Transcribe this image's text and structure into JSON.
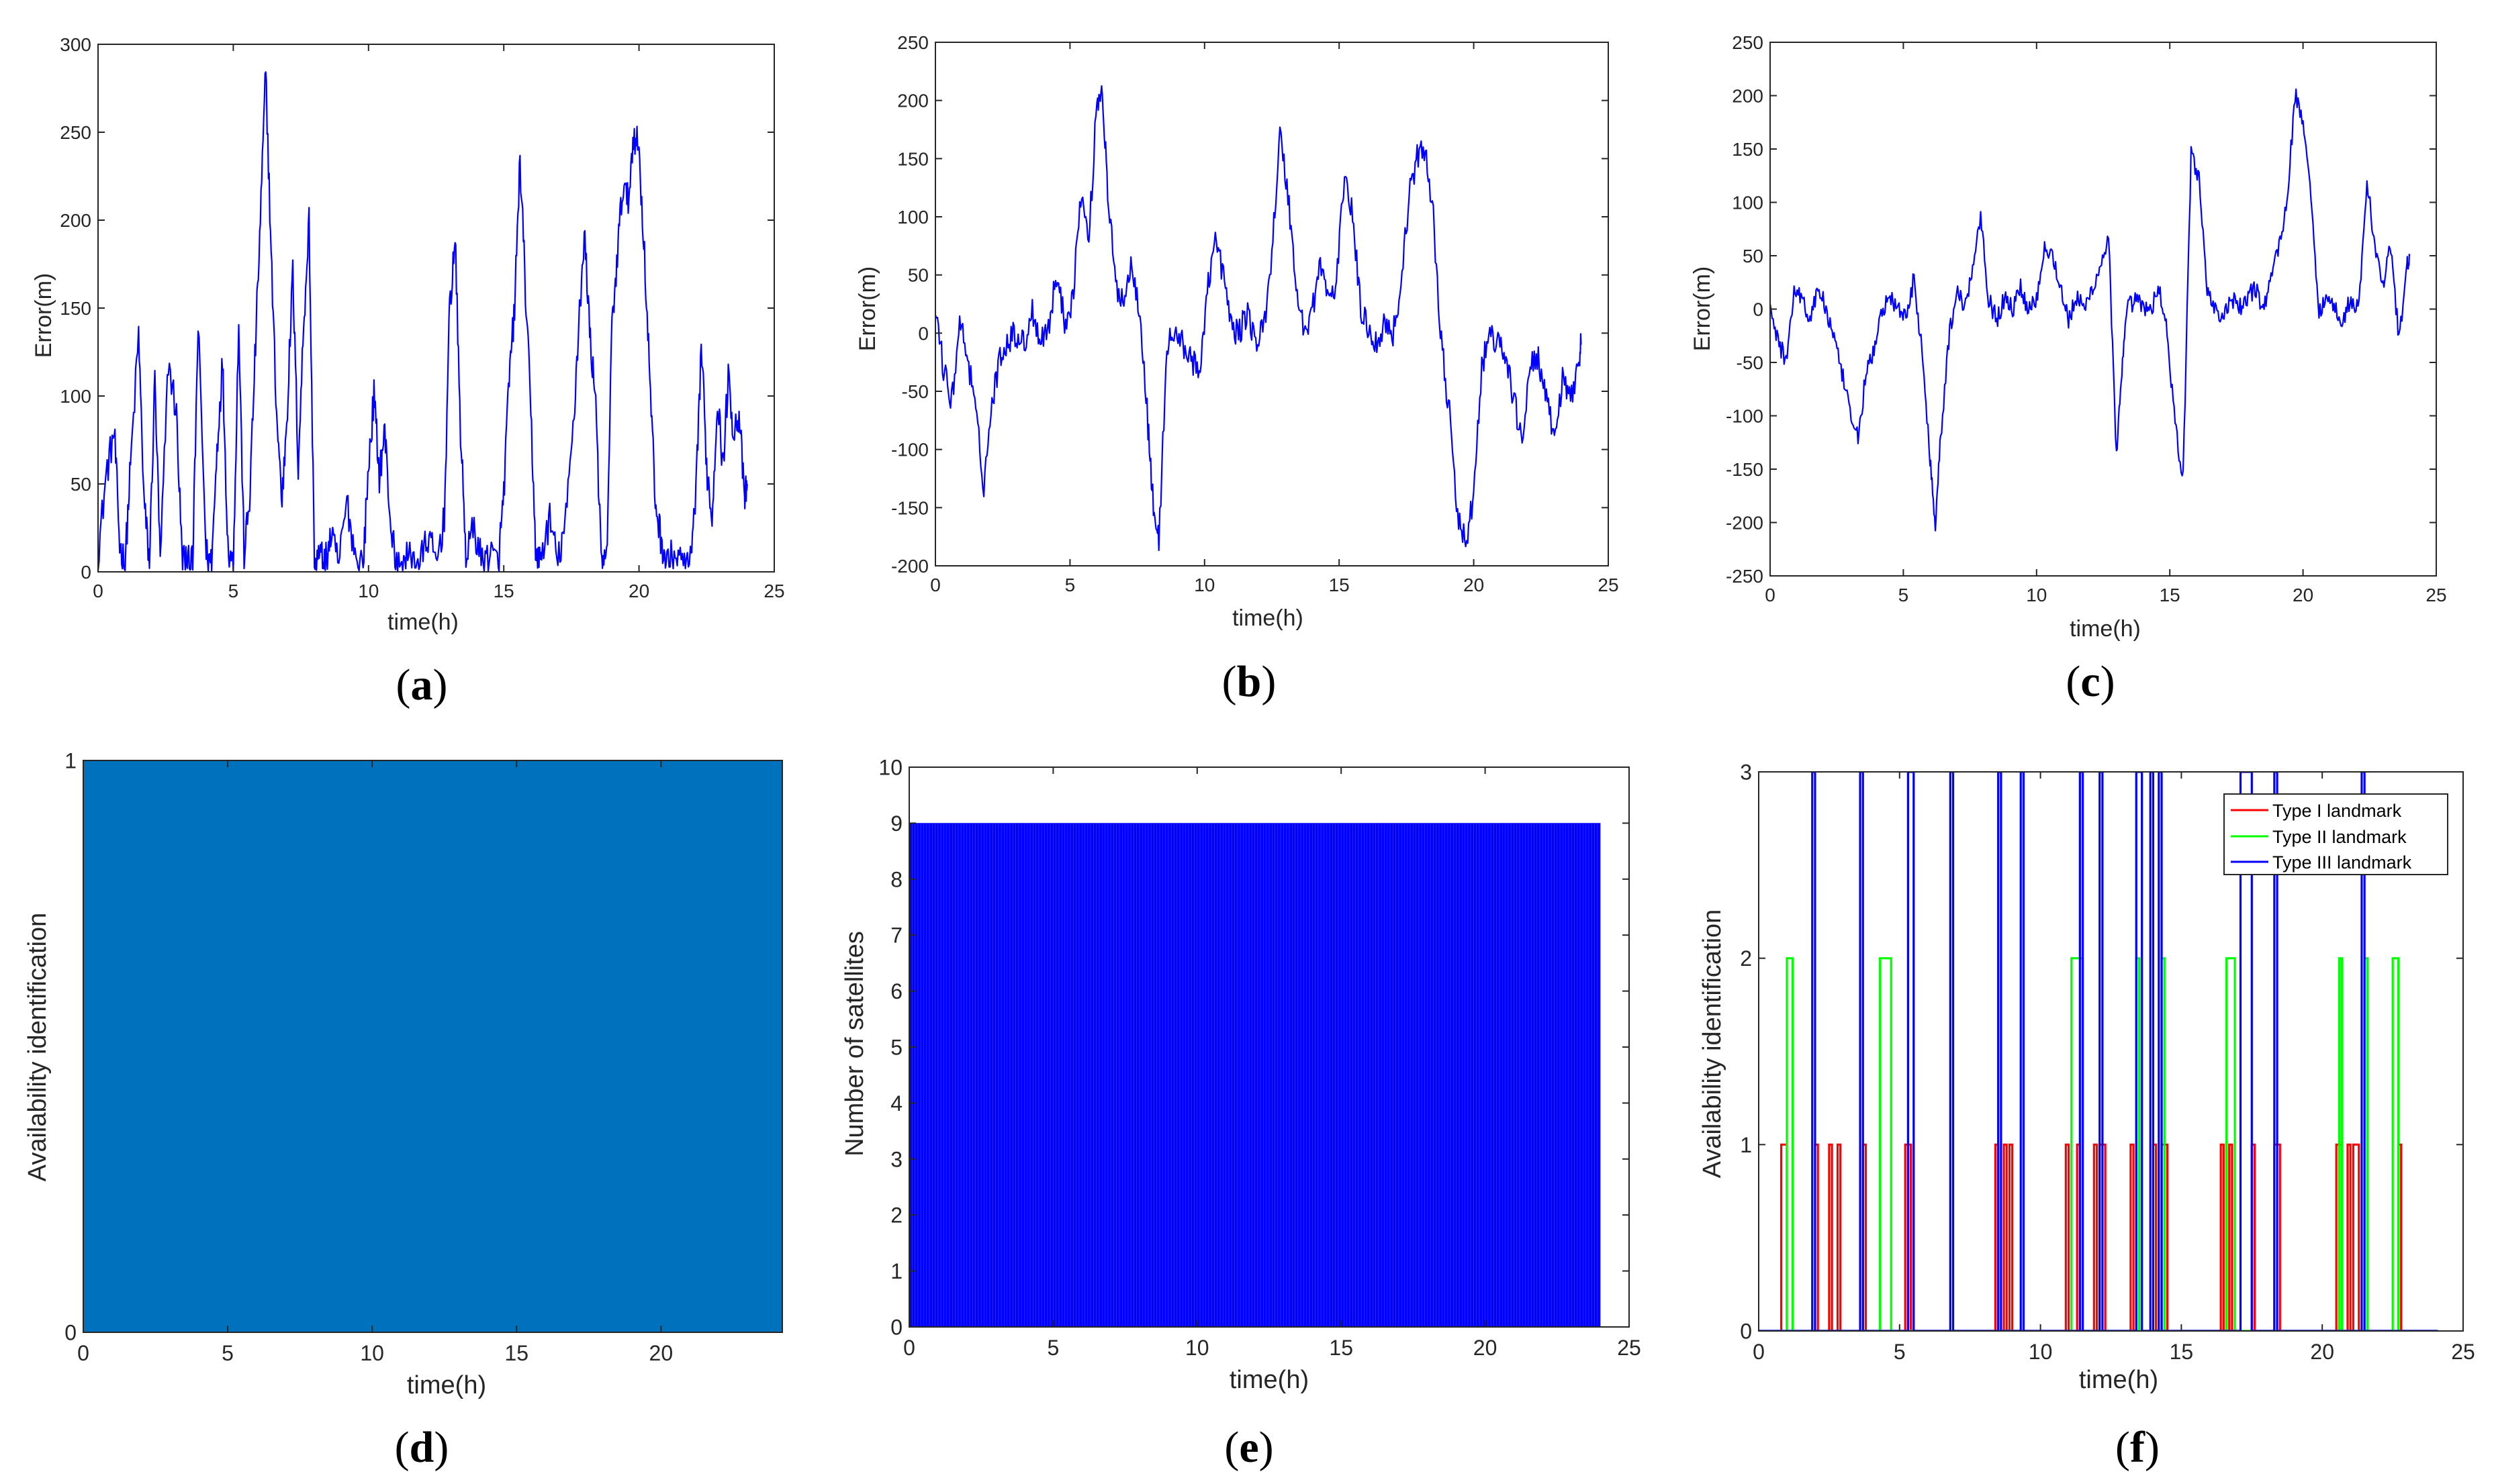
{
  "figure": {
    "panels": [
      {
        "id": "a",
        "caption": {
          "open": "(",
          "letter": "a",
          "close": ")"
        }
      },
      {
        "id": "b",
        "caption": {
          "open": "(",
          "letter": "b",
          "close": ")"
        }
      },
      {
        "id": "c",
        "caption": {
          "open": "(",
          "letter": "c",
          "close": ")"
        }
      },
      {
        "id": "d",
        "caption": {
          "open": "(",
          "letter": "d",
          "close": ")"
        }
      },
      {
        "id": "e",
        "caption": {
          "open": "(",
          "letter": "e",
          "close": ")"
        }
      },
      {
        "id": "f",
        "caption": {
          "open": "(",
          "letter": "f",
          "close": ")"
        }
      }
    ]
  },
  "colors": {
    "blue_line": "#0000ff",
    "fill_blue": "#0072bd",
    "red": "#ff0000",
    "green": "#00ff00",
    "axis": "#262626"
  },
  "chart_data": [
    {
      "id": "a",
      "type": "line",
      "title": "",
      "xlabel": "time(h)",
      "ylabel": "Error(m)",
      "xlim": [
        0,
        25
      ],
      "ylim": [
        0,
        300
      ],
      "xticks": [
        0,
        5,
        10,
        15,
        20,
        25
      ],
      "yticks": [
        0,
        50,
        100,
        150,
        200,
        250,
        300
      ],
      "series": [
        {
          "name": "error",
          "color": "#0000ff",
          "noise": 10,
          "floor": 0,
          "x": [
            0,
            0.3,
            0.6,
            0.8,
            1.0,
            1.2,
            1.5,
            1.7,
            1.9,
            2.1,
            2.3,
            2.6,
            2.9,
            3.1,
            3.3,
            3.5,
            3.7,
            4.0,
            4.2,
            4.4,
            4.6,
            4.8,
            5.0,
            5.2,
            5.4,
            5.6,
            5.8,
            6.0,
            6.2,
            6.4,
            6.6,
            6.8,
            7.0,
            7.2,
            7.4,
            7.6,
            7.8,
            8.0,
            8.2,
            8.4,
            8.6,
            8.9,
            9.2,
            9.5,
            9.8,
            10.0,
            10.2,
            10.4,
            10.6,
            10.8,
            11.0,
            11.3,
            11.6,
            11.9,
            12.2,
            12.5,
            12.8,
            13.0,
            13.2,
            13.4,
            13.6,
            13.9,
            14.2,
            14.5,
            14.8,
            15.0,
            15.2,
            15.4,
            15.6,
            15.8,
            16.0,
            16.2,
            16.4,
            16.7,
            17.0,
            17.3,
            17.6,
            17.8,
            18.0,
            18.2,
            18.4,
            18.6,
            18.8,
            19.0,
            19.2,
            19.4,
            19.6,
            19.8,
            20.0,
            20.2,
            20.4,
            20.6,
            20.8,
            21.0,
            21.3,
            21.6,
            21.9,
            22.1,
            22.3,
            22.5,
            22.7,
            22.9,
            23.1,
            23.3,
            23.5,
            23.7,
            23.9,
            24.0
          ],
          "y": [
            10,
            55,
            80,
            15,
            5,
            60,
            135,
            40,
            5,
            110,
            5,
            120,
            90,
            10,
            5,
            5,
            140,
            10,
            5,
            70,
            120,
            15,
            5,
            140,
            10,
            40,
            120,
            200,
            285,
            180,
            90,
            40,
            95,
            170,
            60,
            140,
            200,
            5,
            10,
            5,
            20,
            5,
            40,
            10,
            5,
            60,
            100,
            55,
            80,
            30,
            5,
            5,
            10,
            5,
            20,
            5,
            30,
            150,
            190,
            80,
            10,
            25,
            5,
            10,
            5,
            45,
            110,
            150,
            235,
            160,
            90,
            5,
            10,
            30,
            5,
            30,
            90,
            150,
            190,
            130,
            100,
            5,
            5,
            140,
            180,
            220,
            210,
            250,
            240,
            180,
            110,
            40,
            20,
            5,
            10,
            5,
            5,
            40,
            130,
            60,
            30,
            100,
            60,
            110,
            80,
            90,
            40,
            50
          ]
        }
      ]
    },
    {
      "id": "b",
      "type": "line",
      "title": "",
      "xlabel": "time(h)",
      "ylabel": "Error(m)",
      "xlim": [
        0,
        25
      ],
      "ylim": [
        -200,
        250
      ],
      "xticks": [
        0,
        5,
        10,
        15,
        20,
        25
      ],
      "yticks": [
        -200,
        -150,
        -100,
        -50,
        0,
        50,
        100,
        150,
        200,
        250
      ],
      "series": [
        {
          "name": "error",
          "color": "#0000ff",
          "noise": 12,
          "x": [
            0,
            0.3,
            0.6,
            0.9,
            1.2,
            1.5,
            1.8,
            2.1,
            2.4,
            2.7,
            3.0,
            3.3,
            3.6,
            3.9,
            4.2,
            4.5,
            4.8,
            5.1,
            5.4,
            5.7,
            6.0,
            6.2,
            6.4,
            6.7,
            7.0,
            7.3,
            7.6,
            7.9,
            8.1,
            8.3,
            8.6,
            8.9,
            9.2,
            9.5,
            9.8,
            10.1,
            10.4,
            10.7,
            11.0,
            11.3,
            11.6,
            11.9,
            12.2,
            12.5,
            12.8,
            13.1,
            13.4,
            13.7,
            14.0,
            14.3,
            14.6,
            14.9,
            15.2,
            15.5,
            15.8,
            16.1,
            16.4,
            16.7,
            17.0,
            17.3,
            17.6,
            17.9,
            18.2,
            18.5,
            18.8,
            19.1,
            19.4,
            19.7,
            20.0,
            20.3,
            20.6,
            20.9,
            21.2,
            21.5,
            21.8,
            22.1,
            22.4,
            22.7,
            23.0,
            23.3,
            23.6,
            23.9,
            24.0
          ],
          "y": [
            20,
            -30,
            -60,
            10,
            -20,
            -70,
            -130,
            -60,
            -20,
            -5,
            0,
            -10,
            20,
            -5,
            5,
            50,
            10,
            30,
            120,
            80,
            200,
            210,
            120,
            40,
            30,
            60,
            20,
            -80,
            -150,
            -180,
            -10,
            0,
            -10,
            -20,
            -40,
            40,
            80,
            50,
            5,
            0,
            20,
            -10,
            5,
            70,
            170,
            120,
            40,
            0,
            20,
            60,
            30,
            40,
            140,
            100,
            20,
            5,
            -10,
            10,
            0,
            40,
            120,
            150,
            160,
            100,
            -10,
            -70,
            -160,
            -180,
            -140,
            -30,
            0,
            -10,
            -20,
            -60,
            -90,
            -30,
            -20,
            -60,
            -90,
            -40,
            -60,
            -20,
            -10
          ]
        }
      ]
    },
    {
      "id": "c",
      "type": "line",
      "title": "",
      "xlabel": "time(h)",
      "ylabel": "Error(m)",
      "xlim": [
        0,
        25
      ],
      "ylim": [
        -250,
        250
      ],
      "xticks": [
        0,
        5,
        10,
        15,
        20,
        25
      ],
      "yticks": [
        -250,
        -200,
        -150,
        -100,
        -50,
        0,
        50,
        100,
        150,
        200,
        250
      ],
      "series": [
        {
          "name": "error",
          "color": "#0000ff",
          "noise": 9,
          "x": [
            0,
            0.3,
            0.6,
            0.9,
            1.2,
            1.5,
            1.8,
            2.1,
            2.4,
            2.7,
            3.0,
            3.3,
            3.6,
            3.9,
            4.2,
            4.5,
            4.8,
            5.1,
            5.4,
            5.7,
            6.0,
            6.2,
            6.4,
            6.7,
            7.0,
            7.3,
            7.6,
            7.9,
            8.2,
            8.5,
            8.8,
            9.1,
            9.4,
            9.7,
            10.0,
            10.3,
            10.6,
            10.9,
            11.2,
            11.5,
            11.8,
            12.1,
            12.4,
            12.7,
            13.0,
            13.2,
            13.4,
            13.7,
            14.0,
            14.3,
            14.6,
            14.9,
            15.2,
            15.5,
            15.8,
            16.1,
            16.4,
            16.7,
            17.0,
            17.3,
            17.6,
            17.9,
            18.2,
            18.5,
            18.8,
            19.1,
            19.4,
            19.7,
            20.0,
            20.3,
            20.6,
            20.9,
            21.2,
            21.5,
            21.8,
            22.1,
            22.4,
            22.7,
            23.0,
            23.3,
            23.6,
            23.9,
            24.0
          ],
          "y": [
            0,
            -30,
            -50,
            20,
            10,
            -10,
            20,
            0,
            -30,
            -60,
            -100,
            -120,
            -60,
            -40,
            0,
            10,
            0,
            -10,
            30,
            -40,
            -140,
            -200,
            -120,
            -30,
            20,
            0,
            40,
            90,
            10,
            -10,
            10,
            0,
            20,
            0,
            10,
            60,
            50,
            20,
            -10,
            10,
            0,
            20,
            40,
            70,
            -140,
            -60,
            0,
            10,
            0,
            0,
            20,
            -20,
            -110,
            -160,
            150,
            120,
            20,
            0,
            -10,
            10,
            0,
            10,
            20,
            0,
            30,
            60,
            100,
            200,
            180,
            100,
            0,
            10,
            0,
            -10,
            10,
            0,
            120,
            60,
            20,
            60,
            -30,
            40,
            50
          ]
        }
      ]
    },
    {
      "id": "d",
      "type": "area",
      "title": "",
      "xlabel": "time(h)",
      "ylabel": "Availability identification",
      "xlim": [
        0,
        24.2
      ],
      "ylim": [
        0,
        1
      ],
      "xticks": [
        0,
        5,
        10,
        15,
        20
      ],
      "yticks": [
        0,
        1
      ],
      "series": [
        {
          "name": "availability",
          "color": "#0072bd",
          "x": [
            0,
            24.2
          ],
          "values": [
            1,
            1
          ]
        }
      ]
    },
    {
      "id": "e",
      "type": "bar",
      "title": "",
      "xlabel": "time(h)",
      "ylabel": "Number of satellites",
      "xlim": [
        0,
        25
      ],
      "ylim": [
        0,
        10
      ],
      "xticks": [
        0,
        5,
        10,
        15,
        20,
        25
      ],
      "yticks": [
        0,
        1,
        2,
        3,
        4,
        5,
        6,
        7,
        8,
        9,
        10
      ],
      "series": [
        {
          "name": "satellites",
          "color": "#0000ff",
          "x_start": 0,
          "x_end": 24,
          "bar_count": 240,
          "value": 9
        }
      ]
    },
    {
      "id": "f",
      "type": "line",
      "title": "",
      "xlabel": "time(h)",
      "ylabel": "Availability identification",
      "xlim": [
        0,
        25
      ],
      "ylim": [
        0,
        3
      ],
      "xticks": [
        0,
        5,
        10,
        15,
        20,
        25
      ],
      "yticks": [
        0,
        1,
        2,
        3
      ],
      "legend": {
        "position": "top-right",
        "entries": [
          "Type I landmark",
          "Type II landmark",
          "Type III landmark"
        ]
      },
      "series": [
        {
          "name": "Type I landmark",
          "color": "#ff0000",
          "level": 1,
          "events": [
            [
              0.8,
              1.0
            ],
            [
              2.0,
              2.1
            ],
            [
              2.5,
              2.6
            ],
            [
              2.8,
              2.9
            ],
            [
              3.7,
              3.8
            ],
            [
              5.2,
              5.4
            ],
            [
              8.4,
              8.5
            ],
            [
              8.7,
              8.8
            ],
            [
              8.9,
              9.0
            ],
            [
              10.9,
              11.0
            ],
            [
              11.3,
              11.4
            ],
            [
              11.9,
              12.0
            ],
            [
              12.1,
              12.3
            ],
            [
              13.2,
              13.3
            ],
            [
              14.0,
              14.1
            ],
            [
              14.3,
              14.5
            ],
            [
              16.4,
              16.5
            ],
            [
              16.7,
              16.8
            ],
            [
              17.5,
              17.6
            ],
            [
              18.3,
              18.5
            ],
            [
              20.5,
              20.7
            ],
            [
              20.9,
              21.0
            ],
            [
              21.1,
              21.3
            ],
            [
              22.7,
              22.8
            ]
          ]
        },
        {
          "name": "Type II landmark",
          "color": "#00ff00",
          "level": 2,
          "events": [
            [
              1.0,
              1.2
            ],
            [
              4.3,
              4.7
            ],
            [
              11.1,
              11.5
            ],
            [
              13.4,
              13.5
            ],
            [
              14.3,
              14.4
            ],
            [
              16.6,
              16.9
            ],
            [
              20.6,
              20.7
            ],
            [
              21.5,
              21.6
            ],
            [
              22.5,
              22.7
            ]
          ]
        },
        {
          "name": "Type III landmark",
          "color": "#0000ff",
          "level": 3,
          "events": [
            [
              1.9,
              2.0
            ],
            [
              3.6,
              3.7
            ],
            [
              5.3,
              5.5
            ],
            [
              6.8,
              6.9
            ],
            [
              8.5,
              8.6
            ],
            [
              9.3,
              9.4
            ],
            [
              11.4,
              11.5
            ],
            [
              12.1,
              12.2
            ],
            [
              13.4,
              13.6
            ],
            [
              13.9,
              14.0
            ],
            [
              14.2,
              14.3
            ],
            [
              17.1,
              17.5
            ],
            [
              18.3,
              18.4
            ],
            [
              21.4,
              21.5
            ]
          ]
        }
      ]
    }
  ]
}
